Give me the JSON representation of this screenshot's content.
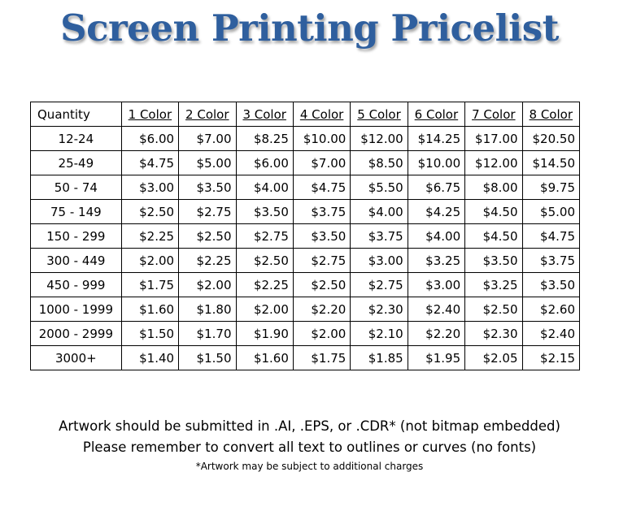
{
  "title": "Screen Printing Pricelist",
  "table": {
    "headers": [
      "Quantity",
      "1 Color",
      "2 Color",
      "3 Color",
      "4 Color",
      "5 Color",
      "6 Color",
      "7 Color",
      "8 Color"
    ],
    "rows": [
      {
        "quantity": "12-24",
        "prices": [
          "$6.00",
          "$7.00",
          "$8.25",
          "$10.00",
          "$12.00",
          "$14.25",
          "$17.00",
          "$20.50"
        ]
      },
      {
        "quantity": "25-49",
        "prices": [
          "$4.75",
          "$5.00",
          "$6.00",
          "$7.00",
          "$8.50",
          "$10.00",
          "$12.00",
          "$14.50"
        ]
      },
      {
        "quantity": "50 - 74",
        "prices": [
          "$3.00",
          "$3.50",
          "$4.00",
          "$4.75",
          "$5.50",
          "$6.75",
          "$8.00",
          "$9.75"
        ]
      },
      {
        "quantity": "75 - 149",
        "prices": [
          "$2.50",
          "$2.75",
          "$3.50",
          "$3.75",
          "$4.00",
          "$4.25",
          "$4.50",
          "$5.00"
        ]
      },
      {
        "quantity": "150 - 299",
        "prices": [
          "$2.25",
          "$2.50",
          "$2.75",
          "$3.50",
          "$3.75",
          "$4.00",
          "$4.50",
          "$4.75"
        ]
      },
      {
        "quantity": "300 - 449",
        "prices": [
          "$2.00",
          "$2.25",
          "$2.50",
          "$2.75",
          "$3.00",
          "$3.25",
          "$3.50",
          "$3.75"
        ]
      },
      {
        "quantity": "450 - 999",
        "prices": [
          "$1.75",
          "$2.00",
          "$2.25",
          "$2.50",
          "$2.75",
          "$3.00",
          "$3.25",
          "$3.50"
        ]
      },
      {
        "quantity": "1000 - 1999",
        "prices": [
          "$1.60",
          "$1.80",
          "$2.00",
          "$2.20",
          "$2.30",
          "$2.40",
          "$2.50",
          "$2.60"
        ]
      },
      {
        "quantity": "2000 - 2999",
        "prices": [
          "$1.50",
          "$1.70",
          "$1.90",
          "$2.00",
          "$2.10",
          "$2.20",
          "$2.30",
          "$2.40"
        ]
      },
      {
        "quantity": "3000+",
        "prices": [
          "$1.40",
          "$1.50",
          "$1.60",
          "$1.75",
          "$1.85",
          "$1.95",
          "$2.05",
          "$2.15"
        ]
      }
    ]
  },
  "notes": {
    "line1": "Artwork should be submitted in .AI, .EPS, or .CDR* (not bitmap embedded)",
    "line2": "Please remember to convert all text to outlines or curves (no fonts)",
    "footnote": "*Artwork may be subject to additional charges"
  },
  "colors": {
    "title": "#2f5f9e"
  }
}
